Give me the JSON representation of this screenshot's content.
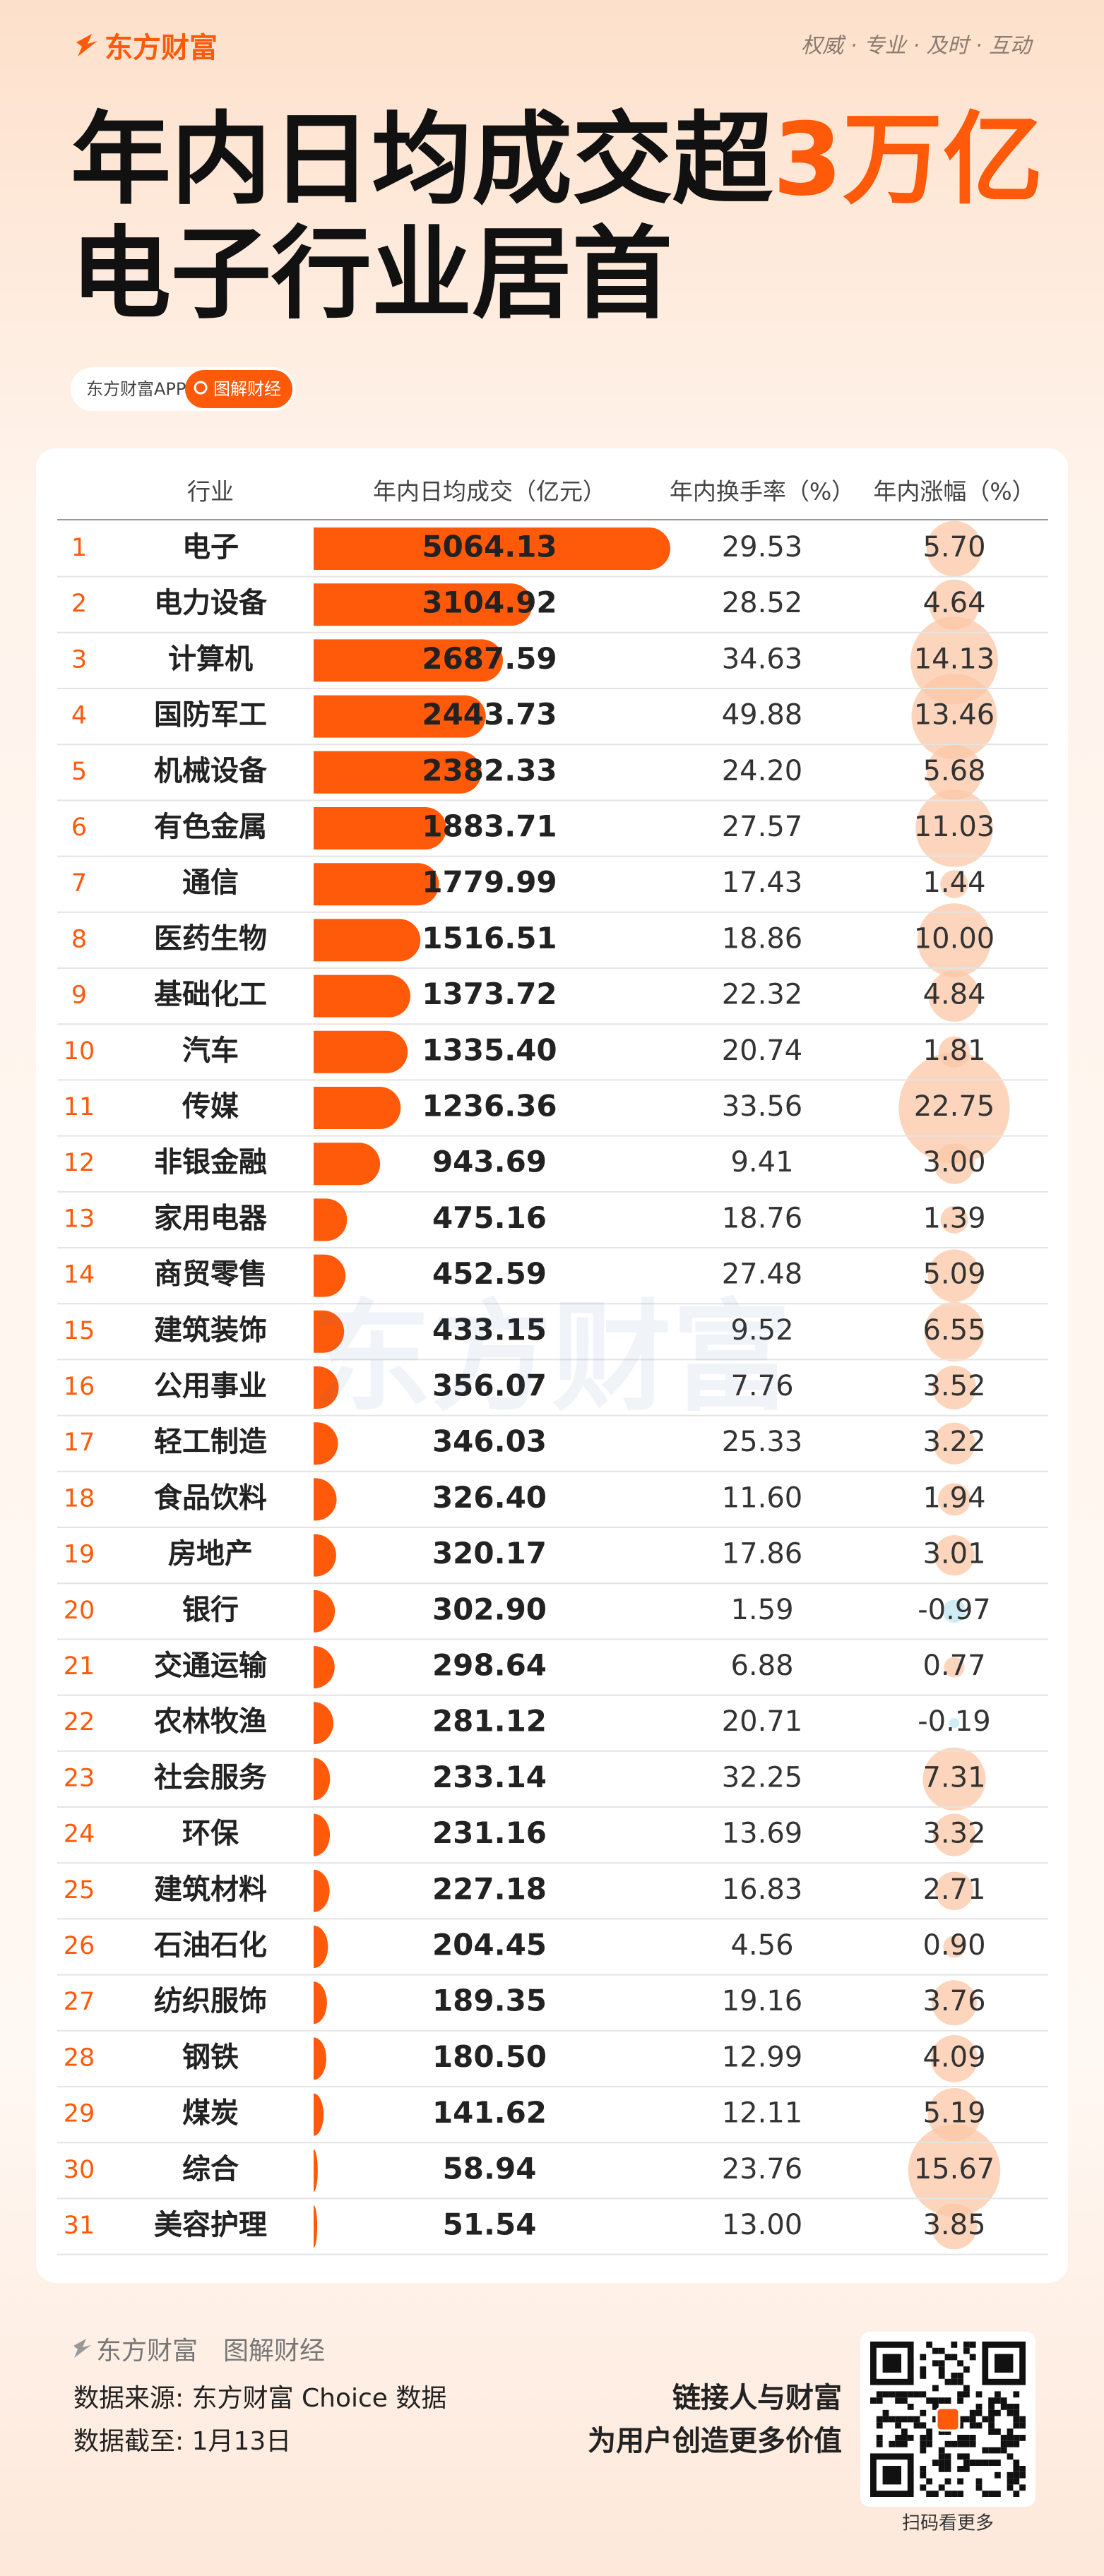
{
  "header": {
    "brand": "东方财富",
    "slogan": "权威 · 专业 · 及时 · 互动",
    "title_line1": "年内日均成交超",
    "title_highlight": "3万亿",
    "title_line2": "电子行业居首",
    "app": "东方财富APP",
    "tag": "图解财经"
  },
  "watermark": "东方财富",
  "chart_data": {
    "type": "table-bar",
    "category_label": "行业",
    "ranks": [
      1,
      2,
      3,
      4,
      5,
      6,
      7,
      8,
      9,
      10,
      11,
      12,
      13,
      14,
      15,
      16,
      17,
      18,
      19,
      20,
      21,
      22,
      23,
      24,
      25,
      26,
      27,
      28,
      29,
      30,
      31
    ],
    "categories": [
      "电子",
      "电力设备",
      "计算机",
      "国防军工",
      "机械设备",
      "有色金属",
      "通信",
      "医药生物",
      "基础化工",
      "汽车",
      "传媒",
      "非银金融",
      "家用电器",
      "商贸零售",
      "建筑装饰",
      "公用事业",
      "轻工制造",
      "食品饮料",
      "房地产",
      "银行",
      "交通运输",
      "农林牧渔",
      "社会服务",
      "环保",
      "建筑材料",
      "石油石化",
      "纺织服饰",
      "钢铁",
      "煤炭",
      "综合",
      "美容护理"
    ],
    "series": [
      {
        "name": "年内日均成交（亿元）",
        "color": "#ff5a0a",
        "values": [
          5064.13,
          3104.92,
          2687.59,
          2443.73,
          2382.33,
          1883.71,
          1779.99,
          1516.51,
          1373.72,
          1335.4,
          1236.36,
          943.69,
          475.16,
          452.59,
          433.15,
          356.07,
          346.03,
          326.4,
          320.17,
          302.9,
          298.64,
          281.12,
          233.14,
          231.16,
          227.18,
          204.45,
          189.35,
          180.5,
          141.62,
          58.94,
          51.54
        ],
        "value_labels": [
          "5064.13",
          "3104.92",
          "2687.59",
          "2443.73",
          "2382.33",
          "1883.71",
          "1779.99",
          "1516.51",
          "1373.72",
          "1335.40",
          "1236.36",
          "943.69",
          "475.16",
          "452.59",
          "433.15",
          "356.07",
          "346.03",
          "326.40",
          "320.17",
          "302.90",
          "298.64",
          "281.12",
          "233.14",
          "231.16",
          "227.18",
          "204.45",
          "189.35",
          "180.50",
          "141.62",
          "58.94",
          "51.54"
        ]
      },
      {
        "name": "年内换手率（%）",
        "values": [
          29.53,
          28.52,
          34.63,
          49.88,
          24.2,
          27.57,
          17.43,
          18.86,
          22.32,
          20.74,
          33.56,
          9.41,
          18.76,
          27.48,
          9.52,
          7.76,
          25.33,
          11.6,
          17.86,
          1.59,
          6.88,
          20.71,
          32.25,
          13.69,
          16.83,
          4.56,
          19.16,
          12.99,
          12.11,
          23.76,
          13.0
        ],
        "value_labels": [
          "29.53",
          "28.52",
          "34.63",
          "49.88",
          "24.20",
          "27.57",
          "17.43",
          "18.86",
          "22.32",
          "20.74",
          "33.56",
          "9.41",
          "18.76",
          "27.48",
          "9.52",
          "7.76",
          "25.33",
          "11.60",
          "17.86",
          "1.59",
          "6.88",
          "20.71",
          "32.25",
          "13.69",
          "16.83",
          "4.56",
          "19.16",
          "12.99",
          "12.11",
          "23.76",
          "13.00"
        ]
      },
      {
        "name": "年内涨幅（%）",
        "color": "#fbc7a6",
        "negative_color": "#bfe6f2",
        "values": [
          5.7,
          4.64,
          14.13,
          13.46,
          5.68,
          11.03,
          1.44,
          10.0,
          4.84,
          1.81,
          22.75,
          3.0,
          1.39,
          5.09,
          6.55,
          3.52,
          3.22,
          1.94,
          3.01,
          -0.97,
          0.77,
          -0.19,
          7.31,
          3.32,
          2.71,
          0.9,
          3.76,
          4.09,
          5.19,
          15.67,
          3.85
        ],
        "value_labels": [
          "5.70",
          "4.64",
          "14.13",
          "13.46",
          "5.68",
          "11.03",
          "1.44",
          "10.00",
          "4.84",
          "1.81",
          "22.75",
          "3.00",
          "1.39",
          "5.09",
          "6.55",
          "3.52",
          "3.22",
          "1.94",
          "3.01",
          "-0.97",
          "0.77",
          "-0.19",
          "7.31",
          "3.32",
          "2.71",
          "0.90",
          "3.76",
          "4.09",
          "5.19",
          "15.67",
          "3.85"
        ]
      }
    ]
  },
  "footer": {
    "brand": "东方财富",
    "column": "图解财经",
    "source": "数据来源: 东方财富 Choice 数据",
    "date": "数据截至: 1月13日",
    "slogan1": "链接人与财富",
    "slogan2": "为用户创造更多价值",
    "qr_caption": "扫码看更多"
  }
}
